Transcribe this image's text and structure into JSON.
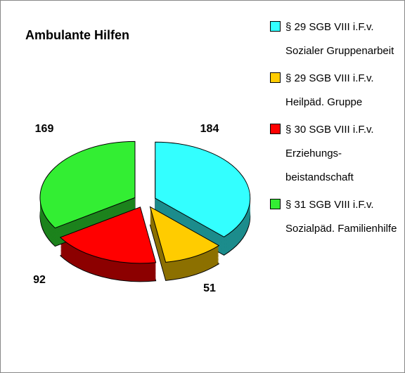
{
  "chart_data": {
    "type": "pie",
    "title": "Ambulante Hilfen",
    "categories": [
      "§ 29 SGB VIII i.F.v. Sozialer Gruppenarbeit",
      "§ 29 SGB VIII i.F.v. Heilpäd. Gruppe",
      "§ 30 SGB VIII i.F.v. Erziehungs-beistandschaft",
      "§ 31 SGB VIII i.F.v. Sozialpäd. Familienhilfe"
    ],
    "values": [
      184,
      51,
      92,
      169
    ],
    "colors": [
      "#33ffff",
      "#ffcc00",
      "#ff0000",
      "#33ee33"
    ]
  }
}
